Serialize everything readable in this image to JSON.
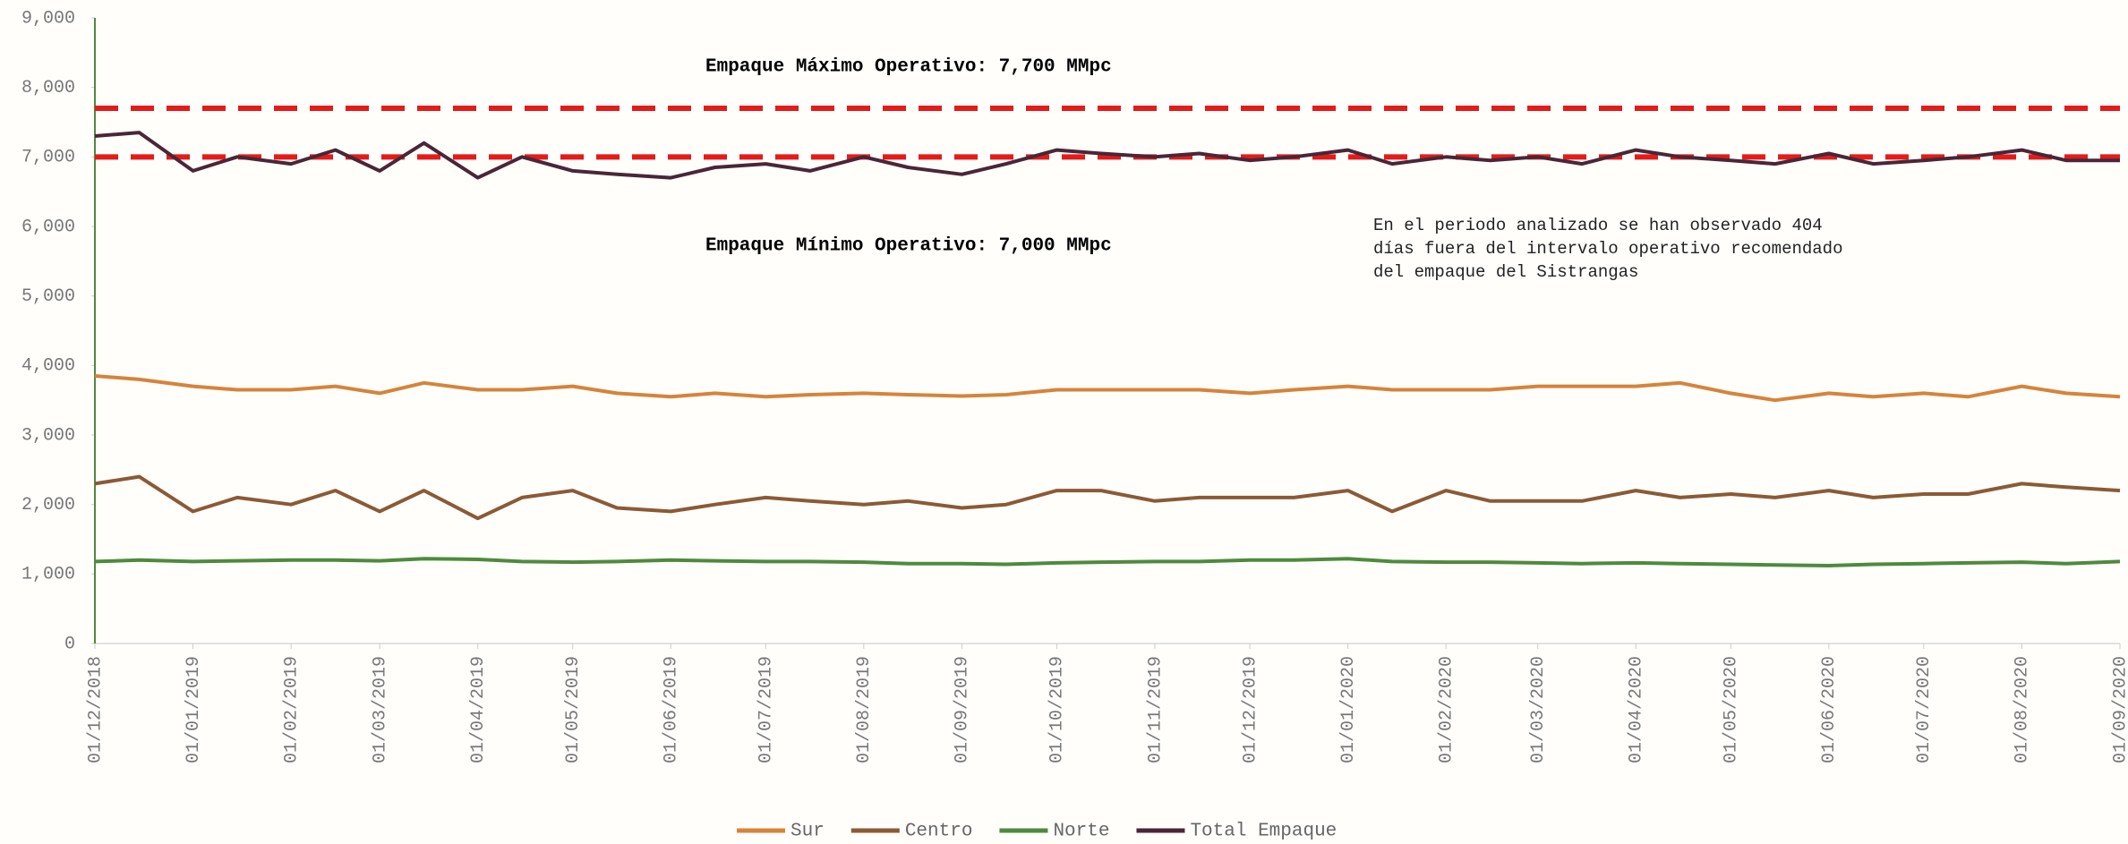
{
  "chart_data": {
    "type": "line",
    "x": [
      "01/12/2018",
      "15/12/2018",
      "01/01/2019",
      "15/01/2019",
      "01/02/2019",
      "15/02/2019",
      "01/03/2019",
      "15/03/2019",
      "01/04/2019",
      "15/04/2019",
      "01/05/2019",
      "15/05/2019",
      "01/06/2019",
      "15/06/2019",
      "01/07/2019",
      "15/07/2019",
      "01/08/2019",
      "15/08/2019",
      "01/09/2019",
      "15/09/2019",
      "01/10/2019",
      "15/10/2019",
      "01/11/2019",
      "15/11/2019",
      "01/12/2019",
      "15/12/2019",
      "01/01/2020",
      "15/01/2020",
      "01/02/2020",
      "15/02/2020",
      "01/03/2020",
      "15/03/2020",
      "01/04/2020",
      "15/04/2020",
      "01/05/2020",
      "15/05/2020",
      "01/06/2020",
      "15/06/2020",
      "01/07/2020",
      "15/07/2020",
      "01/08/2020",
      "15/08/2020",
      "01/09/2020"
    ],
    "series": [
      {
        "name": "Sur",
        "color": "#d5843a",
        "values": [
          3850,
          3800,
          3700,
          3650,
          3650,
          3700,
          3600,
          3750,
          3650,
          3650,
          3700,
          3600,
          3550,
          3600,
          3550,
          3580,
          3600,
          3580,
          3560,
          3580,
          3650,
          3650,
          3650,
          3650,
          3600,
          3650,
          3700,
          3650,
          3650,
          3650,
          3700,
          3700,
          3700,
          3750,
          3600,
          3500,
          3600,
          3550,
          3600,
          3550,
          3700,
          3600,
          3550
        ]
      },
      {
        "name": "Centro",
        "color": "#8b5a35",
        "values": [
          2300,
          2400,
          1900,
          2100,
          2000,
          2200,
          1900,
          2200,
          1800,
          2100,
          2200,
          1950,
          1900,
          2000,
          2100,
          2050,
          2000,
          2050,
          1950,
          2000,
          2200,
          2200,
          2050,
          2100,
          2100,
          2100,
          2200,
          1900,
          2200,
          2050,
          2050,
          2050,
          2200,
          2100,
          2150,
          2100,
          2200,
          2100,
          2150,
          2150,
          2300,
          2250,
          2200
        ]
      },
      {
        "name": "Norte",
        "color": "#4e8a3e",
        "values": [
          1180,
          1200,
          1180,
          1190,
          1200,
          1200,
          1190,
          1220,
          1210,
          1180,
          1170,
          1180,
          1200,
          1190,
          1180,
          1180,
          1170,
          1150,
          1150,
          1140,
          1160,
          1170,
          1180,
          1180,
          1200,
          1200,
          1220,
          1180,
          1170,
          1170,
          1160,
          1150,
          1160,
          1150,
          1140,
          1130,
          1120,
          1140,
          1150,
          1160,
          1170,
          1150,
          1180
        ]
      },
      {
        "name": "Total Empaque",
        "color": "#4a2637",
        "values": [
          7300,
          7350,
          6800,
          7000,
          6900,
          7100,
          6800,
          7200,
          6700,
          7000,
          6800,
          6750,
          6700,
          6850,
          6900,
          6800,
          7000,
          6850,
          6750,
          6900,
          7100,
          7050,
          7000,
          7050,
          6950,
          7000,
          7100,
          6900,
          7000,
          6950,
          7000,
          6900,
          7100,
          7000,
          6950,
          6900,
          7050,
          6900,
          6950,
          7000,
          7100,
          6950,
          6950
        ]
      }
    ],
    "xlim": [
      "01/12/2018",
      "01/09/2020"
    ],
    "xticks": [
      "01/12/2018",
      "01/01/2019",
      "01/02/2019",
      "01/03/2019",
      "01/04/2019",
      "01/05/2019",
      "01/06/2019",
      "01/07/2019",
      "01/08/2019",
      "01/09/2019",
      "01/10/2019",
      "01/11/2019",
      "01/12/2019",
      "01/01/2020",
      "01/02/2020",
      "01/03/2020",
      "01/04/2020",
      "01/05/2020",
      "01/06/2020",
      "01/07/2020",
      "01/08/2020",
      "01/09/2020"
    ],
    "ylim": [
      0,
      9000
    ],
    "yticks": [
      0,
      {
        "value": 1000,
        "label": "1,000"
      },
      {
        "value": 2000,
        "label": "2,000"
      },
      {
        "value": 3000,
        "label": "3,000"
      },
      {
        "value": 4000,
        "label": "4,000"
      },
      {
        "value": 5000,
        "label": "5,000"
      },
      {
        "value": 6000,
        "label": "6,000"
      },
      {
        "value": 7000,
        "label": "7,000"
      },
      {
        "value": 8000,
        "label": "8,000"
      },
      {
        "value": 9000,
        "label": "9,000"
      }
    ],
    "reference_lines": [
      {
        "value": 7700,
        "color": "#e31b1b",
        "label": "Empaque Máximo Operativo: 7,700 MMpc"
      },
      {
        "value": 7000,
        "color": "#e31b1b",
        "label": "Empaque Mínimo Operativo: 7,000 MMpc"
      }
    ],
    "note": [
      "En el periodo analizado se han observado 404",
      "días fuera del intervalo operativo recomendado",
      "del empaque del Sistrangas"
    ],
    "legend": "bottom"
  }
}
